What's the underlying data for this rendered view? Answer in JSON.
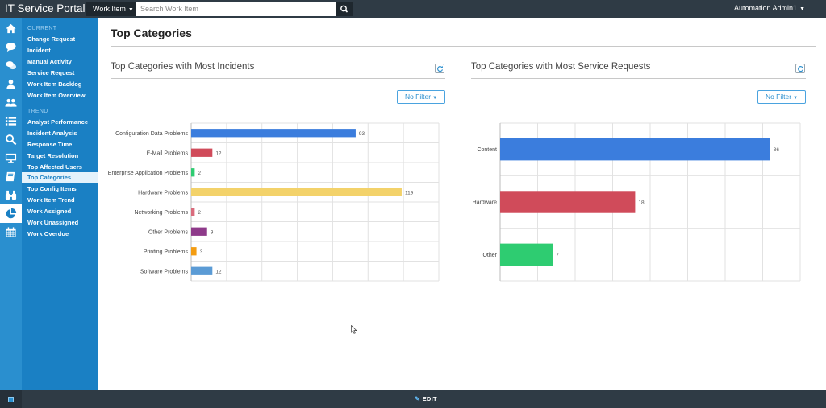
{
  "app": {
    "brand": "IT Service Portal",
    "user_name": "Automation Admin1"
  },
  "search": {
    "workitem_label": "Work Item",
    "placeholder": "Search Work Item"
  },
  "rail_icons": [
    "home-icon",
    "comment-icon",
    "comments-icon",
    "user-icon",
    "users-icon",
    "list-icon",
    "search-icon",
    "desktop-icon",
    "book-icon",
    "binoculars-icon",
    "pie-chart-icon",
    "calendar-icon"
  ],
  "sidebar": {
    "current_label": "CURRENT",
    "current_items": [
      "Change Request",
      "Incident",
      "Manual Activity",
      "Service Request",
      "Work Item Backlog",
      "Work Item Overview"
    ],
    "trend_label": "TREND",
    "trend_items": [
      "Analyst Performance",
      "Incident Analysis",
      "Response Time",
      "Target Resolution",
      "Top Affected Users",
      "Top Categories",
      "Top Config Items",
      "Work Item Trend",
      "Work Assigned",
      "Work Unassigned",
      "Work Overdue"
    ],
    "active_item": "Top Categories"
  },
  "page": {
    "title": "Top Categories"
  },
  "panels": {
    "incidents": {
      "title": "Top Categories with Most Incidents",
      "filter_label": "No Filter"
    },
    "requests": {
      "title": "Top Categories with Most Service Requests",
      "filter_label": "No Filter"
    }
  },
  "footer": {
    "edit_label": "EDIT"
  },
  "chart_data": [
    {
      "type": "bar",
      "orientation": "horizontal",
      "categories": [
        "Configuration Data Problems",
        "E-Mail Problems",
        "Enterprise Application Problems",
        "Hardware Problems",
        "Networking Problems",
        "Other Problems",
        "Printing Problems",
        "Software Problems"
      ],
      "values": [
        93,
        12,
        2,
        119,
        2,
        9,
        3,
        12
      ],
      "colors": [
        "#3b7ddd",
        "#d04b5a",
        "#2ecc71",
        "#f3d26a",
        "#d96b7c",
        "#8e3a8a",
        "#f39c12",
        "#5b9bd5"
      ],
      "xlim": [
        0,
        140
      ],
      "xticks": [
        0,
        20,
        40,
        60,
        80,
        100,
        120,
        140
      ],
      "grid": true,
      "data_labels": true
    },
    {
      "type": "bar",
      "orientation": "horizontal",
      "categories": [
        "Content",
        "Hardware",
        "Other"
      ],
      "values": [
        36,
        18,
        7
      ],
      "colors": [
        "#3b7ddd",
        "#d04b5a",
        "#2ecc71"
      ],
      "xlim": [
        0,
        40
      ],
      "xticks": [
        0,
        5,
        10,
        15,
        20,
        25,
        30,
        35,
        40
      ],
      "grid": true,
      "data_labels": true
    }
  ]
}
